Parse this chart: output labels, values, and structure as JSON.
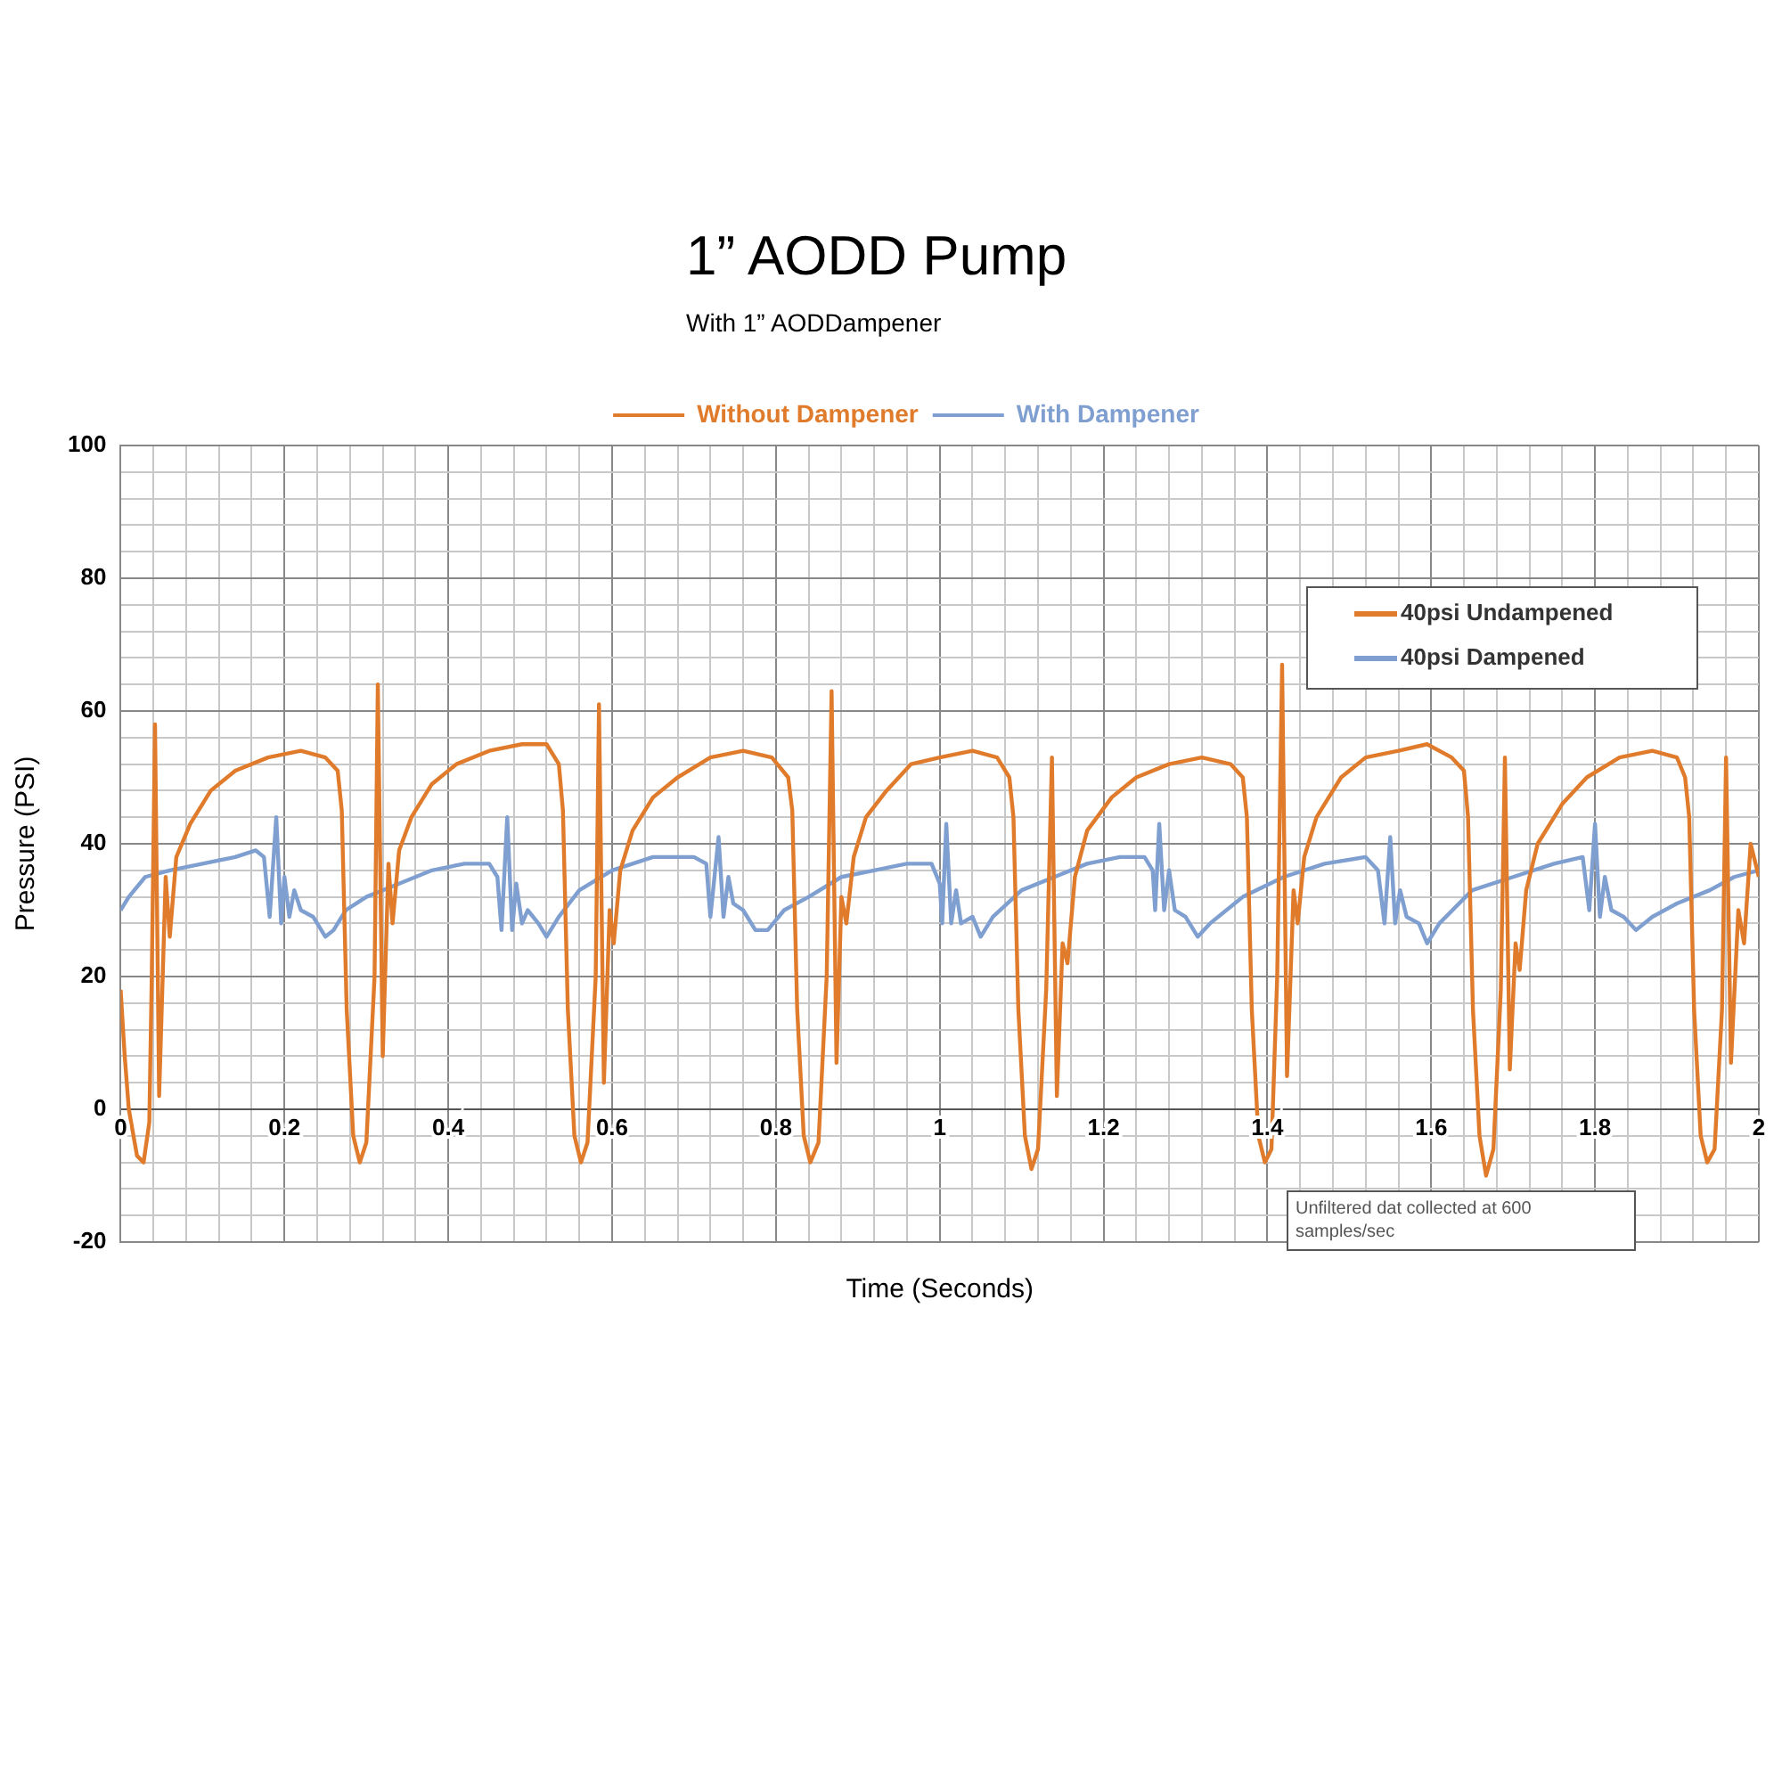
{
  "chart_data": {
    "type": "line",
    "title": "1” AODD Pump",
    "subtitle": "With 1” AODDampener",
    "xlabel": "Time (Seconds)",
    "ylabel": "Pressure (PSI)",
    "xlim": [
      0,
      2
    ],
    "ylim": [
      -20,
      100
    ],
    "xticks": [
      0,
      {
        "value": 0.04,
        "label": null
      },
      {
        "value": 0.08,
        "label": null
      },
      {
        "value": 0.12,
        "label": null
      },
      {
        "value": 0.16,
        "label": null
      },
      0.2,
      {
        "value": 0.24,
        "label": null
      },
      {
        "value": 0.28,
        "label": null
      },
      {
        "value": 0.32,
        "label": null
      },
      {
        "value": 0.36,
        "label": null
      },
      0.4,
      {
        "value": 0.44,
        "label": null
      },
      {
        "value": 0.48,
        "label": null
      },
      {
        "value": 0.52,
        "label": null
      },
      {
        "value": 0.56,
        "label": null
      },
      0.6,
      {
        "value": 0.64,
        "label": null
      },
      {
        "value": 0.68,
        "label": null
      },
      {
        "value": 0.72,
        "label": null
      },
      {
        "value": 0.76,
        "label": null
      },
      0.8,
      {
        "value": 0.84,
        "label": null
      },
      {
        "value": 0.88,
        "label": null
      },
      {
        "value": 0.92,
        "label": null
      },
      {
        "value": 0.96,
        "label": null
      },
      1,
      {
        "value": 1.04,
        "label": null
      },
      {
        "value": 1.08,
        "label": null
      },
      {
        "value": 1.12,
        "label": null
      },
      {
        "value": 1.16,
        "label": null
      },
      1.2,
      {
        "value": 1.24,
        "label": null
      },
      {
        "value": 1.28,
        "label": null
      },
      {
        "value": 1.32,
        "label": null
      },
      {
        "value": 1.36,
        "label": null
      },
      1.4,
      {
        "value": 1.44,
        "label": null
      },
      {
        "value": 1.48,
        "label": null
      },
      {
        "value": 1.52,
        "label": null
      },
      {
        "value": 1.56,
        "label": null
      },
      1.6,
      {
        "value": 1.64,
        "label": null
      },
      {
        "value": 1.68,
        "label": null
      },
      {
        "value": 1.72,
        "label": null
      },
      {
        "value": 1.76,
        "label": null
      },
      1.8,
      {
        "value": 1.84,
        "label": null
      },
      {
        "value": 1.88,
        "label": null
      },
      {
        "value": 1.92,
        "label": null
      },
      {
        "value": 1.96,
        "label": null
      },
      2
    ],
    "yticks": [
      -20,
      {
        "value": -16,
        "label": null
      },
      {
        "value": -12,
        "label": null
      },
      {
        "value": -8,
        "label": null
      },
      {
        "value": -4,
        "label": null
      },
      0,
      {
        "value": 4,
        "label": null
      },
      {
        "value": 8,
        "label": null
      },
      {
        "value": 12,
        "label": null
      },
      {
        "value": 16,
        "label": null
      },
      20,
      {
        "value": 24,
        "label": null
      },
      {
        "value": 28,
        "label": null
      },
      {
        "value": 32,
        "label": null
      },
      {
        "value": 36,
        "label": null
      },
      40,
      {
        "value": 44,
        "label": null
      },
      {
        "value": 48,
        "label": null
      },
      {
        "value": 52,
        "label": null
      },
      {
        "value": 56,
        "label": null
      },
      60,
      {
        "value": 64,
        "label": null
      },
      {
        "value": 68,
        "label": null
      },
      {
        "value": 72,
        "label": null
      },
      {
        "value": 76,
        "label": null
      },
      80,
      {
        "value": 84,
        "label": null
      },
      {
        "value": 88,
        "label": null
      },
      {
        "value": 92,
        "label": null
      },
      {
        "value": 96,
        "label": null
      },
      100
    ],
    "grid": true,
    "legend": "top",
    "marker": "none",
    "line_style": "solid",
    "annotations": [
      "40psi Undampened",
      "40psi Dampened",
      "Unfiltered dat collected at 600 samples/sec"
    ],
    "series": [
      {
        "name": "Without Dampener",
        "color": "#e07b2c",
        "x": [
          0,
          0.005,
          0.01,
          0.02,
          0.028,
          0.035,
          0.038,
          0.042,
          0.047,
          0.055,
          0.06,
          0.068,
          0.085,
          0.11,
          0.14,
          0.18,
          0.22,
          0.25,
          0.265,
          0.27,
          0.276,
          0.284,
          0.292,
          0.3,
          0.31,
          0.314,
          0.32,
          0.327,
          0.332,
          0.34,
          0.355,
          0.38,
          0.41,
          0.45,
          0.49,
          0.52,
          0.535,
          0.54,
          0.546,
          0.554,
          0.562,
          0.57,
          0.58,
          0.584,
          0.59,
          0.597,
          0.602,
          0.61,
          0.625,
          0.65,
          0.68,
          0.72,
          0.76,
          0.795,
          0.815,
          0.82,
          0.826,
          0.834,
          0.842,
          0.852,
          0.862,
          0.868,
          0.874,
          0.88,
          0.886,
          0.895,
          0.91,
          0.935,
          0.965,
          1,
          1.04,
          1.07,
          1.085,
          1.09,
          1.096,
          1.104,
          1.112,
          1.12,
          1.13,
          1.137,
          1.143,
          1.15,
          1.156,
          1.165,
          1.18,
          1.21,
          1.24,
          1.28,
          1.32,
          1.355,
          1.37,
          1.375,
          1.381,
          1.389,
          1.397,
          1.405,
          1.412,
          1.418,
          1.424,
          1.432,
          1.437,
          1.445,
          1.46,
          1.49,
          1.52,
          1.56,
          1.595,
          1.625,
          1.64,
          1.645,
          1.651,
          1.659,
          1.667,
          1.676,
          1.685,
          1.69,
          1.696,
          1.703,
          1.708,
          1.716,
          1.73,
          1.76,
          1.79,
          1.83,
          1.87,
          1.9,
          1.91,
          1.915,
          1.921,
          1.929,
          1.937,
          1.946,
          1.955,
          1.96,
          1.966,
          1.975,
          1.982,
          1.99,
          2
        ],
        "values": [
          18,
          8,
          0,
          -7,
          -8,
          -2,
          20,
          58,
          2,
          35,
          26,
          38,
          43,
          48,
          51,
          53,
          54,
          53,
          51,
          45,
          15,
          -4,
          -8,
          -5,
          20,
          64,
          8,
          37,
          28,
          39,
          44,
          49,
          52,
          54,
          55,
          55,
          52,
          45,
          15,
          -4,
          -8,
          -5,
          20,
          61,
          4,
          30,
          25,
          36,
          42,
          47,
          50,
          53,
          54,
          53,
          50,
          45,
          15,
          -4,
          -8,
          -5,
          20,
          63,
          7,
          32,
          28,
          38,
          44,
          48,
          52,
          53,
          54,
          53,
          50,
          44,
          15,
          -4,
          -9,
          -6,
          18,
          53,
          2,
          25,
          22,
          35,
          42,
          47,
          50,
          52,
          53,
          52,
          50,
          44,
          15,
          -4,
          -8,
          -6,
          20,
          67,
          5,
          33,
          28,
          38,
          44,
          50,
          53,
          54,
          55,
          53,
          51,
          44,
          15,
          -4,
          -10,
          -6,
          18,
          53,
          6,
          25,
          21,
          33,
          40,
          46,
          50,
          53,
          54,
          53,
          50,
          44,
          15,
          -4,
          -8,
          -6,
          15,
          53,
          7,
          30,
          25,
          40,
          35
        ]
      },
      {
        "name": "With Dampener",
        "color": "#7f9fd0",
        "x": [
          0,
          0.01,
          0.03,
          0.06,
          0.1,
          0.14,
          0.165,
          0.175,
          0.182,
          0.19,
          0.196,
          0.2,
          0.206,
          0.212,
          0.22,
          0.235,
          0.25,
          0.26,
          0.275,
          0.3,
          0.34,
          0.38,
          0.42,
          0.45,
          0.46,
          0.465,
          0.472,
          0.478,
          0.483,
          0.49,
          0.497,
          0.51,
          0.52,
          0.535,
          0.56,
          0.6,
          0.65,
          0.7,
          0.715,
          0.72,
          0.73,
          0.736,
          0.742,
          0.748,
          0.76,
          0.775,
          0.79,
          0.81,
          0.84,
          0.88,
          0.92,
          0.96,
          0.99,
          1,
          1.003,
          1.008,
          1.014,
          1.02,
          1.026,
          1.04,
          1.05,
          1.065,
          1.1,
          1.14,
          1.18,
          1.22,
          1.25,
          1.26,
          1.263,
          1.268,
          1.274,
          1.28,
          1.287,
          1.3,
          1.315,
          1.33,
          1.37,
          1.42,
          1.47,
          1.52,
          1.535,
          1.543,
          1.55,
          1.556,
          1.562,
          1.57,
          1.585,
          1.595,
          1.61,
          1.65,
          1.7,
          1.75,
          1.785,
          1.793,
          1.8,
          1.806,
          1.812,
          1.82,
          1.835,
          1.85,
          1.87,
          1.9,
          1.94,
          1.97,
          2
        ],
        "values": [
          30,
          32,
          35,
          36,
          37,
          38,
          39,
          38,
          29,
          44,
          28,
          35,
          29,
          33,
          30,
          29,
          26,
          27,
          30,
          32,
          34,
          36,
          37,
          37,
          35,
          27,
          44,
          27,
          34,
          28,
          30,
          28,
          26,
          29,
          33,
          36,
          38,
          38,
          37,
          29,
          41,
          29,
          35,
          31,
          30,
          27,
          27,
          30,
          32,
          35,
          36,
          37,
          37,
          34,
          28,
          43,
          28,
          33,
          28,
          29,
          26,
          29,
          33,
          35,
          37,
          38,
          38,
          36,
          30,
          43,
          30,
          36,
          30,
          29,
          26,
          28,
          32,
          35,
          37,
          38,
          36,
          28,
          41,
          28,
          33,
          29,
          28,
          25,
          28,
          33,
          35,
          37,
          38,
          30,
          43,
          29,
          35,
          30,
          29,
          27,
          29,
          31,
          33,
          35,
          36
        ]
      }
    ]
  }
}
